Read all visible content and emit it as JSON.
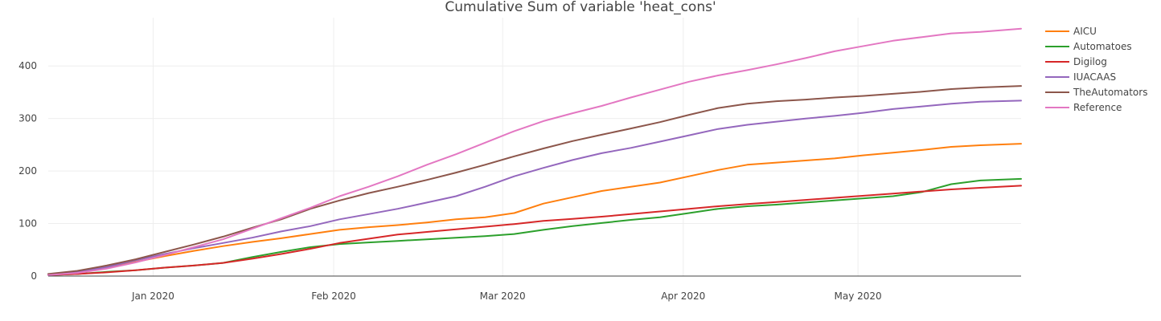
{
  "chart_data": {
    "type": "line",
    "title": "Cumulative Sum of variable 'heat_cons'",
    "xlabel": "",
    "ylabel": "",
    "x_range": [
      "2019-12-14",
      "2020-05-29"
    ],
    "ylim": [
      0,
      492
    ],
    "grid": true,
    "legend_position": "top-right",
    "x_ticks": [
      {
        "date": "2020-01-01",
        "label": "Jan 2020"
      },
      {
        "date": "2020-02-01",
        "label": "Feb 2020"
      },
      {
        "date": "2020-03-01",
        "label": "Mar 2020"
      },
      {
        "date": "2020-04-01",
        "label": "Apr 2020"
      },
      {
        "date": "2020-05-01",
        "label": "May 2020"
      }
    ],
    "y_ticks": [
      0,
      100,
      200,
      300,
      400
    ],
    "x": [
      "2019-12-14",
      "2019-12-19",
      "2019-12-24",
      "2019-12-29",
      "2020-01-03",
      "2020-01-08",
      "2020-01-13",
      "2020-01-18",
      "2020-01-23",
      "2020-01-28",
      "2020-02-02",
      "2020-02-07",
      "2020-02-12",
      "2020-02-17",
      "2020-02-22",
      "2020-02-27",
      "2020-03-03",
      "2020-03-08",
      "2020-03-13",
      "2020-03-18",
      "2020-03-23",
      "2020-03-28",
      "2020-04-02",
      "2020-04-07",
      "2020-04-12",
      "2020-04-17",
      "2020-04-22",
      "2020-04-27",
      "2020-05-02",
      "2020-05-07",
      "2020-05-12",
      "2020-05-17",
      "2020-05-22",
      "2020-05-29"
    ],
    "series": [
      {
        "name": "AICU",
        "color": "#ff7f0e",
        "values": [
          3,
          8,
          17,
          27,
          38,
          48,
          57,
          65,
          72,
          80,
          88,
          93,
          97,
          102,
          108,
          112,
          120,
          138,
          150,
          162,
          170,
          178,
          190,
          202,
          212,
          216,
          220,
          224,
          230,
          235,
          240,
          246,
          249,
          252
        ]
      },
      {
        "name": "Automatoes",
        "color": "#2ca02c",
        "values": [
          2,
          4,
          8,
          11,
          16,
          20,
          25,
          36,
          46,
          55,
          61,
          64,
          67,
          70,
          73,
          76,
          80,
          88,
          95,
          101,
          107,
          112,
          120,
          128,
          133,
          136,
          140,
          144,
          148,
          152,
          160,
          175,
          182,
          185
        ]
      },
      {
        "name": "Digilog",
        "color": "#d62728",
        "values": [
          2,
          4,
          7,
          11,
          16,
          20,
          25,
          33,
          42,
          52,
          63,
          71,
          79,
          84,
          89,
          94,
          99,
          105,
          109,
          113,
          118,
          123,
          128,
          133,
          137,
          141,
          145,
          149,
          153,
          157,
          161,
          165,
          168,
          172
        ]
      },
      {
        "name": "IUACAAS",
        "color": "#9467bd",
        "values": [
          3,
          8,
          17,
          30,
          42,
          53,
          63,
          73,
          85,
          95,
          108,
          118,
          128,
          140,
          152,
          170,
          190,
          206,
          221,
          234,
          244,
          256,
          268,
          280,
          288,
          294,
          300,
          305,
          311,
          318,
          323,
          328,
          332,
          334
        ]
      },
      {
        "name": "TheAutomators",
        "color": "#8c564b",
        "values": [
          4,
          10,
          20,
          32,
          46,
          60,
          75,
          92,
          108,
          128,
          144,
          158,
          170,
          183,
          197,
          212,
          228,
          243,
          257,
          269,
          281,
          293,
          307,
          320,
          328,
          333,
          336,
          340,
          343,
          347,
          351,
          356,
          359,
          362
        ]
      },
      {
        "name": "Reference",
        "color": "#e377c2",
        "values": [
          2,
          6,
          14,
          26,
          40,
          55,
          70,
          90,
          110,
          130,
          152,
          170,
          190,
          212,
          232,
          254,
          276,
          295,
          310,
          324,
          340,
          355,
          370,
          382,
          392,
          403,
          415,
          428,
          438,
          448,
          455,
          462,
          465,
          471
        ]
      }
    ]
  }
}
